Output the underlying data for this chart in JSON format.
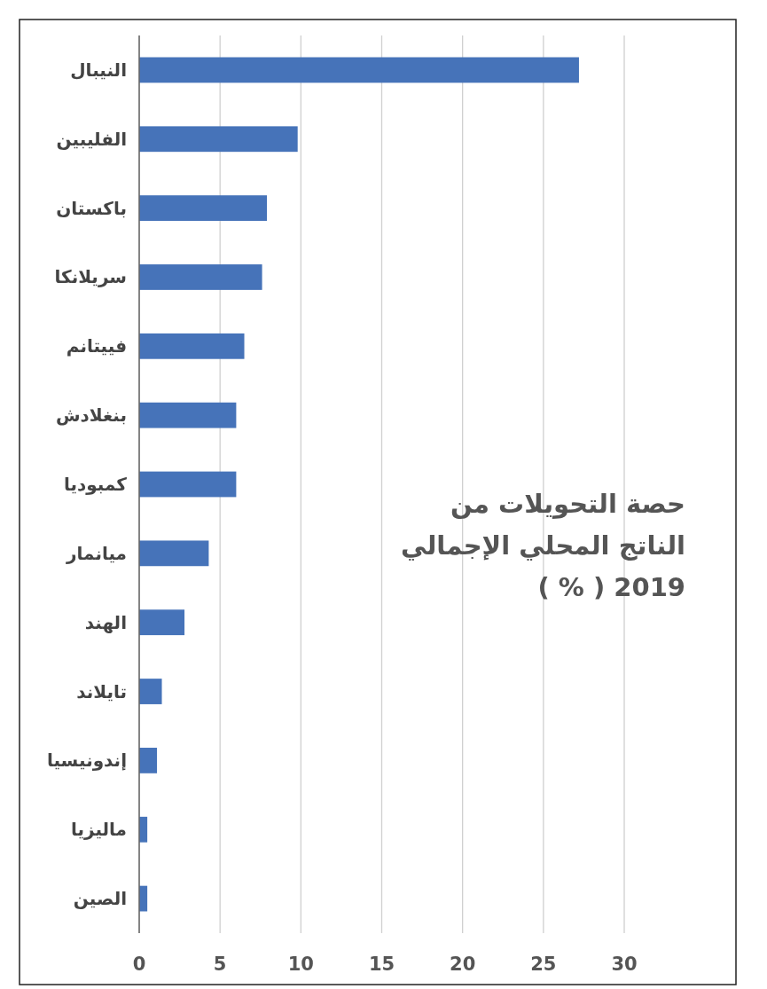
{
  "chart_data": {
    "type": "bar",
    "orientation": "horizontal",
    "title": "حصة التحويلات من الناتج المحلي الإجمالي 2019 ( % )",
    "categories": [
      "النيبال",
      "الفليبين",
      "باكستان",
      "سريلانكا",
      "فييتانم",
      "بنغلادش",
      "كمبوديا",
      "ميانمار",
      "الهند",
      "تايلاند",
      "إندونيسيا",
      "ماليزيا",
      "الصين"
    ],
    "values": [
      27.2,
      9.8,
      7.9,
      7.6,
      6.5,
      6.0,
      6.0,
      4.3,
      2.8,
      1.4,
      1.1,
      0.5,
      0.5
    ],
    "color": "#4673b9",
    "xlim": [
      0,
      30
    ],
    "xticks": [
      0,
      5,
      10,
      15,
      20,
      25,
      30
    ],
    "grid": "x"
  }
}
